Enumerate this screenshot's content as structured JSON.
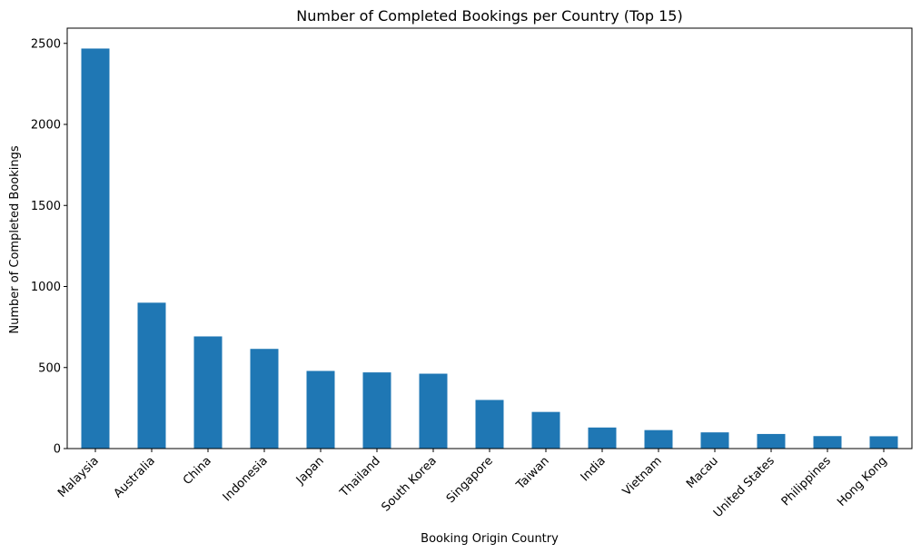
{
  "chart_data": {
    "type": "bar",
    "title": "Number of Completed Bookings per Country (Top 15)",
    "xlabel": "Booking Origin Country",
    "ylabel": "Number of Completed Bookings",
    "categories": [
      "Malaysia",
      "Australia",
      "China",
      "Indonesia",
      "Japan",
      "Thailand",
      "South Korea",
      "Singapore",
      "Taiwan",
      "India",
      "Vietnam",
      "Macau",
      "United States",
      "Philippines",
      "Hong Kong"
    ],
    "values": [
      2468,
      900,
      692,
      615,
      479,
      470,
      462,
      300,
      226,
      130,
      114,
      100,
      90,
      77,
      76
    ],
    "yticks": [
      0,
      500,
      1000,
      1500,
      2000,
      2500
    ],
    "ylim": [
      0,
      2600
    ],
    "grid": false,
    "colors": {
      "bar": "#1f77b4",
      "axis": "#000000"
    }
  }
}
